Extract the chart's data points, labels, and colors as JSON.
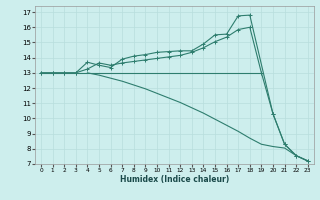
{
  "xlabel": "Humidex (Indice chaleur)",
  "bg_color": "#cdeeed",
  "grid_color": "#b8dedd",
  "line_color": "#2e7d6e",
  "xlim": [
    -0.5,
    23.5
  ],
  "ylim": [
    7,
    17.4
  ],
  "xticks": [
    0,
    1,
    2,
    3,
    4,
    5,
    6,
    7,
    8,
    9,
    10,
    11,
    12,
    13,
    14,
    15,
    16,
    17,
    18,
    19,
    20,
    21,
    22,
    23
  ],
  "yticks": [
    7,
    8,
    9,
    10,
    11,
    12,
    13,
    14,
    15,
    16,
    17
  ],
  "curve_up1_x": [
    0,
    1,
    2,
    3,
    4,
    5,
    6,
    7,
    8,
    9,
    10,
    11,
    12,
    13,
    14,
    15,
    16,
    17,
    18,
    20,
    21,
    22,
    23
  ],
  "curve_up1_y": [
    13,
    13,
    13,
    13,
    13.7,
    13.5,
    13.35,
    13.9,
    14.1,
    14.2,
    14.35,
    14.4,
    14.45,
    14.45,
    14.9,
    15.5,
    15.55,
    16.75,
    16.8,
    10.3,
    8.3,
    7.55,
    7.2
  ],
  "curve_up2_x": [
    0,
    1,
    2,
    3,
    4,
    5,
    6,
    7,
    8,
    9,
    10,
    11,
    12,
    13,
    14,
    15,
    16,
    17,
    18,
    19,
    20,
    21,
    22,
    23
  ],
  "curve_up2_y": [
    13,
    13,
    13,
    13,
    13.25,
    13.65,
    13.5,
    13.65,
    13.75,
    13.85,
    13.95,
    14.05,
    14.15,
    14.35,
    14.65,
    15.05,
    15.35,
    15.85,
    16.0,
    13,
    10.3,
    8.3,
    7.55,
    7.2
  ],
  "curve_flat_x": [
    0,
    1,
    2,
    3,
    4,
    5,
    6,
    7,
    8,
    9,
    10,
    11,
    12,
    13,
    14,
    15,
    16,
    17,
    18,
    19
  ],
  "curve_flat_y": [
    13,
    13,
    13,
    13,
    13,
    13,
    13,
    13,
    13,
    13,
    13,
    13,
    13,
    13,
    13,
    13,
    13,
    13,
    13,
    13
  ],
  "curve_down_x": [
    4,
    5,
    6,
    7,
    8,
    9,
    10,
    11,
    12,
    13,
    14,
    15,
    16,
    17,
    18,
    19,
    20,
    21,
    22,
    23
  ],
  "curve_down_y": [
    13,
    12.85,
    12.65,
    12.45,
    12.2,
    11.95,
    11.65,
    11.35,
    11.05,
    10.7,
    10.35,
    9.95,
    9.55,
    9.15,
    8.7,
    8.3,
    8.15,
    8.05,
    7.55,
    7.2
  ]
}
